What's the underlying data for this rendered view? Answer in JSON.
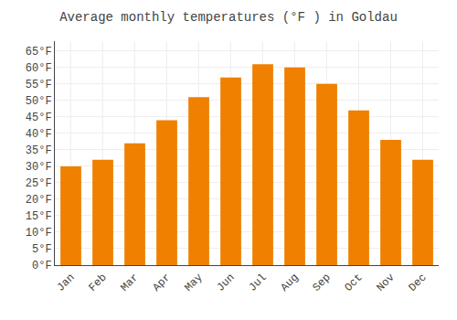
{
  "chart_data": {
    "type": "bar",
    "title": "Average monthly temperatures (°F ) in Goldau",
    "categories": [
      "Jan",
      "Feb",
      "Mar",
      "Apr",
      "May",
      "Jun",
      "Jul",
      "Aug",
      "Sep",
      "Oct",
      "Nov",
      "Dec"
    ],
    "values": [
      30,
      32,
      37,
      44,
      51,
      57,
      61,
      60,
      55,
      47,
      38,
      32
    ],
    "color": "#F08000",
    "ylim": [
      0,
      68
    ],
    "yticks": [
      {
        "value": 0,
        "label": "0°F"
      },
      {
        "value": 5,
        "label": "5°F"
      },
      {
        "value": 10,
        "label": "10°F"
      },
      {
        "value": 15,
        "label": "15°F"
      },
      {
        "value": 20,
        "label": "20°F"
      },
      {
        "value": 25,
        "label": "25°F"
      },
      {
        "value": 30,
        "label": "30°F"
      },
      {
        "value": 35,
        "label": "35°F"
      },
      {
        "value": 40,
        "label": "40°F"
      },
      {
        "value": 45,
        "label": "45°F"
      },
      {
        "value": 50,
        "label": "50°F"
      },
      {
        "value": 55,
        "label": "55°F"
      },
      {
        "value": 60,
        "label": "60°F"
      },
      {
        "value": 65,
        "label": "65°F"
      }
    ],
    "grid": true
  }
}
